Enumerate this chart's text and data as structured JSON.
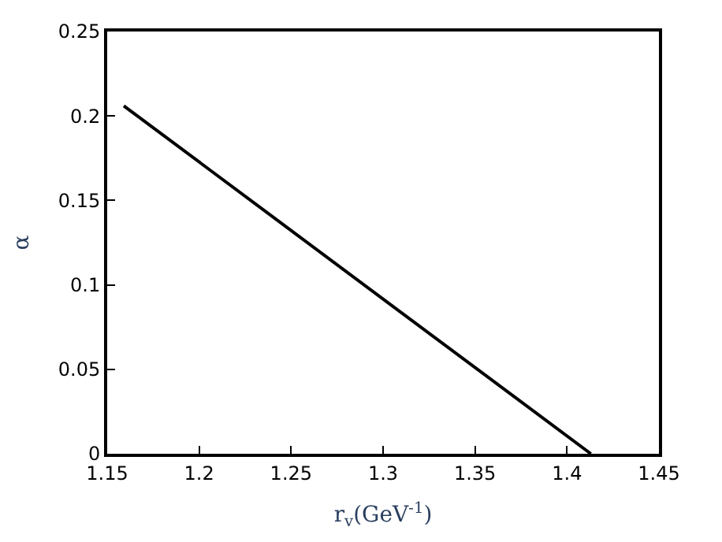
{
  "chart_data": {
    "type": "line",
    "xlabel": "r$_{v}$(GeV$^{-1}$)",
    "ylabel": "α",
    "x": [
      1.159,
      1.413
    ],
    "series": [
      {
        "color": "#000000",
        "values": [
          0.206,
          0
        ]
      }
    ],
    "xlim": [
      1.15,
      1.45
    ],
    "xticks": [
      1.15,
      1.2,
      1.25,
      1.3,
      1.35,
      1.4,
      1.45
    ],
    "ylim": [
      0,
      0.25
    ],
    "yticks": [
      0,
      0.05,
      0.1,
      0.15,
      0.2,
      0.25
    ],
    "marker": "none",
    "line_style": "solid"
  }
}
